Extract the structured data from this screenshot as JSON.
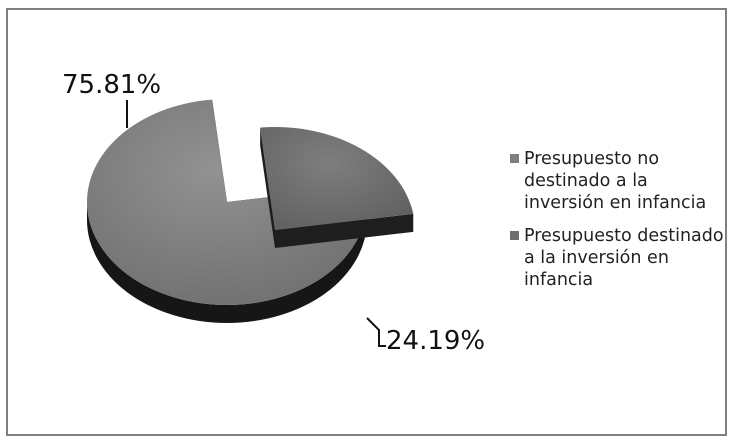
{
  "chart_data": {
    "type": "pie",
    "style": "3d-exploded",
    "slices": [
      {
        "name": "Presupuesto no destinado a la inversión en infancia",
        "value": 75.81,
        "label": "75.81%",
        "color": "#7f7f7f"
      },
      {
        "name": "Presupuesto destinado a la inversión en infancia",
        "value": 24.19,
        "label": "24.19%",
        "color": "#6e6e6e"
      }
    ],
    "legend_position": "right"
  }
}
